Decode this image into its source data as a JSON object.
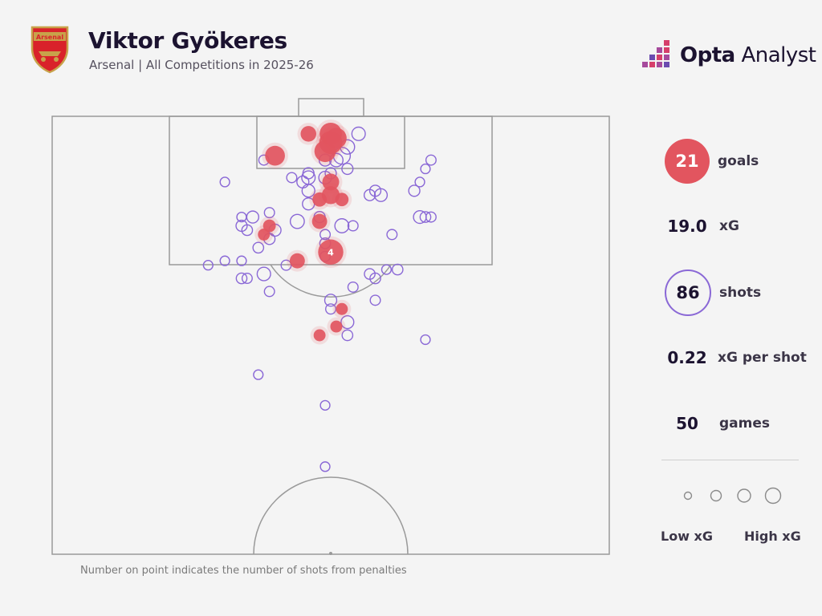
{
  "header": {
    "player_name": "Viktor Gyökeres",
    "subtitle": "Arsenal | All Competitions in 2025-26",
    "club_crest_text": "Arsenal",
    "brand_bold": "Opta",
    "brand_light": " Analyst"
  },
  "stats": {
    "goals_value": "21",
    "goals_label": "goals",
    "xg_value": "19.0",
    "xg_label": "xG",
    "shots_value": "86",
    "shots_label": "shots",
    "xg_per_shot_value": "0.22",
    "xg_per_shot_label": "xG per shot",
    "games_value": "50",
    "games_label": "games"
  },
  "legend": {
    "low_label": "Low xG",
    "high_label": "High xG"
  },
  "footnote": "Number on point indicates the number of shots from penalties",
  "colors": {
    "goal": "#e2555f",
    "shot": "#8a68d6",
    "line": "#9a9a9a",
    "text": "#1c1330"
  },
  "chart_data": {
    "type": "scatter",
    "title": "Viktor Gyökeres",
    "pitch": "half-pitch shot map, attacking upwards",
    "series": [
      {
        "name": "goals",
        "marker": "filled",
        "points": [
          {
            "x": 0.5,
            "y": 0.04,
            "xg": 0.55
          },
          {
            "x": 0.5,
            "y": 0.06,
            "xg": 0.6
          },
          {
            "x": 0.49,
            "y": 0.08,
            "xg": 0.5
          },
          {
            "x": 0.51,
            "y": 0.05,
            "xg": 0.45
          },
          {
            "x": 0.46,
            "y": 0.04,
            "xg": 0.2
          },
          {
            "x": 0.4,
            "y": 0.09,
            "xg": 0.4
          },
          {
            "x": 0.5,
            "y": 0.15,
            "xg": 0.25
          },
          {
            "x": 0.5,
            "y": 0.18,
            "xg": 0.3
          },
          {
            "x": 0.48,
            "y": 0.19,
            "xg": 0.15
          },
          {
            "x": 0.52,
            "y": 0.19,
            "xg": 0.12
          },
          {
            "x": 0.48,
            "y": 0.24,
            "xg": 0.18
          },
          {
            "x": 0.39,
            "y": 0.25,
            "xg": 0.1
          },
          {
            "x": 0.38,
            "y": 0.27,
            "xg": 0.08
          },
          {
            "x": 0.5,
            "y": 0.31,
            "xg": 0.76,
            "penalties": 4
          },
          {
            "x": 0.44,
            "y": 0.33,
            "xg": 0.18
          },
          {
            "x": 0.52,
            "y": 0.44,
            "xg": 0.08
          },
          {
            "x": 0.51,
            "y": 0.48,
            "xg": 0.08
          },
          {
            "x": 0.48,
            "y": 0.5,
            "xg": 0.08
          }
        ]
      },
      {
        "name": "shots",
        "marker": "hollow",
        "points": [
          {
            "x": 0.55,
            "y": 0.04,
            "xg": 0.12
          },
          {
            "x": 0.53,
            "y": 0.07,
            "xg": 0.15
          },
          {
            "x": 0.52,
            "y": 0.09,
            "xg": 0.25
          },
          {
            "x": 0.51,
            "y": 0.1,
            "xg": 0.12
          },
          {
            "x": 0.49,
            "y": 0.1,
            "xg": 0.08
          },
          {
            "x": 0.38,
            "y": 0.1,
            "xg": 0.04
          },
          {
            "x": 0.46,
            "y": 0.13,
            "xg": 0.06
          },
          {
            "x": 0.46,
            "y": 0.14,
            "xg": 0.12
          },
          {
            "x": 0.45,
            "y": 0.15,
            "xg": 0.08
          },
          {
            "x": 0.49,
            "y": 0.14,
            "xg": 0.1
          },
          {
            "x": 0.5,
            "y": 0.13,
            "xg": 0.06
          },
          {
            "x": 0.53,
            "y": 0.12,
            "xg": 0.06
          },
          {
            "x": 0.43,
            "y": 0.14,
            "xg": 0.04
          },
          {
            "x": 0.46,
            "y": 0.17,
            "xg": 0.1
          },
          {
            "x": 0.46,
            "y": 0.2,
            "xg": 0.08
          },
          {
            "x": 0.58,
            "y": 0.17,
            "xg": 0.06
          },
          {
            "x": 0.57,
            "y": 0.18,
            "xg": 0.06
          },
          {
            "x": 0.59,
            "y": 0.18,
            "xg": 0.1
          },
          {
            "x": 0.68,
            "y": 0.1,
            "xg": 0.04
          },
          {
            "x": 0.67,
            "y": 0.12,
            "xg": 0.03
          },
          {
            "x": 0.66,
            "y": 0.15,
            "xg": 0.03
          },
          {
            "x": 0.65,
            "y": 0.17,
            "xg": 0.06
          },
          {
            "x": 0.66,
            "y": 0.23,
            "xg": 0.1
          },
          {
            "x": 0.67,
            "y": 0.23,
            "xg": 0.05
          },
          {
            "x": 0.68,
            "y": 0.23,
            "xg": 0.04
          },
          {
            "x": 0.61,
            "y": 0.27,
            "xg": 0.04
          },
          {
            "x": 0.31,
            "y": 0.15,
            "xg": 0.03
          },
          {
            "x": 0.34,
            "y": 0.23,
            "xg": 0.03
          },
          {
            "x": 0.36,
            "y": 0.23,
            "xg": 0.08
          },
          {
            "x": 0.34,
            "y": 0.25,
            "xg": 0.06
          },
          {
            "x": 0.35,
            "y": 0.26,
            "xg": 0.05
          },
          {
            "x": 0.39,
            "y": 0.22,
            "xg": 0.04
          },
          {
            "x": 0.4,
            "y": 0.26,
            "xg": 0.08
          },
          {
            "x": 0.39,
            "y": 0.28,
            "xg": 0.06
          },
          {
            "x": 0.44,
            "y": 0.24,
            "xg": 0.14
          },
          {
            "x": 0.48,
            "y": 0.23,
            "xg": 0.06
          },
          {
            "x": 0.52,
            "y": 0.25,
            "xg": 0.14
          },
          {
            "x": 0.54,
            "y": 0.25,
            "xg": 0.04
          },
          {
            "x": 0.49,
            "y": 0.27,
            "xg": 0.04
          },
          {
            "x": 0.49,
            "y": 0.29,
            "xg": 0.05
          },
          {
            "x": 0.49,
            "y": 0.32,
            "xg": 0.04
          },
          {
            "x": 0.37,
            "y": 0.3,
            "xg": 0.05
          },
          {
            "x": 0.31,
            "y": 0.33,
            "xg": 0.03
          },
          {
            "x": 0.34,
            "y": 0.33,
            "xg": 0.03
          },
          {
            "x": 0.28,
            "y": 0.34,
            "xg": 0.03
          },
          {
            "x": 0.42,
            "y": 0.34,
            "xg": 0.04
          },
          {
            "x": 0.38,
            "y": 0.36,
            "xg": 0.12
          },
          {
            "x": 0.34,
            "y": 0.37,
            "xg": 0.05
          },
          {
            "x": 0.35,
            "y": 0.37,
            "xg": 0.04
          },
          {
            "x": 0.39,
            "y": 0.4,
            "xg": 0.04
          },
          {
            "x": 0.57,
            "y": 0.36,
            "xg": 0.05
          },
          {
            "x": 0.58,
            "y": 0.37,
            "xg": 0.05
          },
          {
            "x": 0.6,
            "y": 0.35,
            "xg": 0.03
          },
          {
            "x": 0.62,
            "y": 0.35,
            "xg": 0.05
          },
          {
            "x": 0.54,
            "y": 0.39,
            "xg": 0.04
          },
          {
            "x": 0.58,
            "y": 0.42,
            "xg": 0.04
          },
          {
            "x": 0.5,
            "y": 0.42,
            "xg": 0.08
          },
          {
            "x": 0.5,
            "y": 0.44,
            "xg": 0.04
          },
          {
            "x": 0.53,
            "y": 0.47,
            "xg": 0.1
          },
          {
            "x": 0.53,
            "y": 0.5,
            "xg": 0.05
          },
          {
            "x": 0.67,
            "y": 0.51,
            "xg": 0.03
          },
          {
            "x": 0.37,
            "y": 0.59,
            "xg": 0.03
          },
          {
            "x": 0.49,
            "y": 0.66,
            "xg": 0.03
          },
          {
            "x": 0.49,
            "y": 0.8,
            "xg": 0.03
          }
        ]
      }
    ]
  }
}
